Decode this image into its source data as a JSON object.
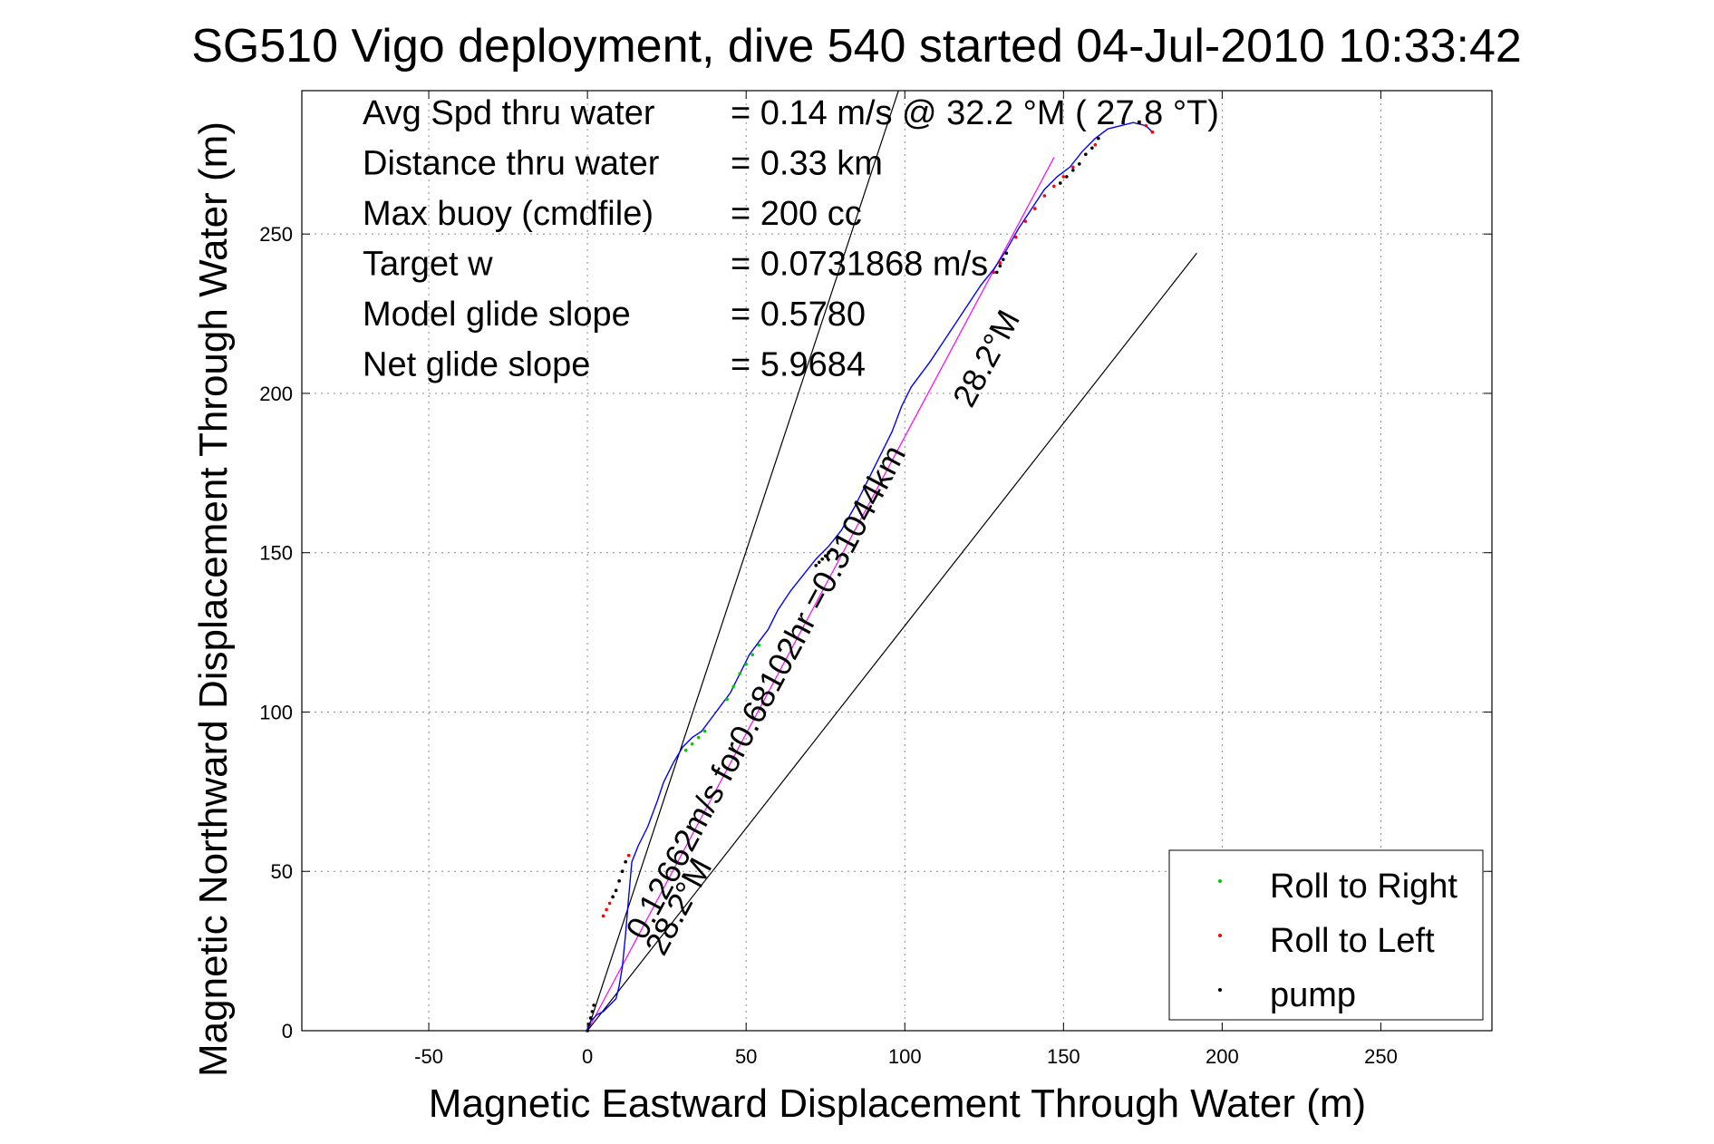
{
  "chart_data": {
    "type": "line",
    "title": "SG510 Vigo deployment, dive 540 started 04-Jul-2010 10:33:42",
    "xlabel": "Magnetic Eastward Displacement Through Water (m)",
    "ylabel": "Magnetic Northward Displacement Through Water (m)",
    "xlim": [
      -90,
      285
    ],
    "ylim": [
      0,
      295
    ],
    "xticks": [
      -50,
      0,
      50,
      100,
      150,
      200,
      250
    ],
    "yticks": [
      0,
      50,
      100,
      150,
      200,
      250
    ],
    "grid": true,
    "legend_position": "bottom-right",
    "colors": {
      "track": "#0000ff",
      "roll_right": "#00cc00",
      "roll_left": "#ff0000",
      "pump": "#000000",
      "heading_line": "#ff00ff",
      "bounds": "#000000"
    },
    "stats": [
      {
        "label": "Avg Spd thru water",
        "value": "=  0.14 m/s @  32.2 °M ( 27.8 °T)"
      },
      {
        "label": "Distance thru water",
        "value": "=  0.33 km"
      },
      {
        "label": "Max buoy (cmdfile)",
        "value": "= 200 cc"
      },
      {
        "label": "Target w",
        "value": "= 0.0731868 m/s"
      },
      {
        "label": "Model glide slope",
        "value": "= 0.5780"
      },
      {
        "label": "Net glide slope",
        "value": "= 5.9684"
      }
    ],
    "annotations": [
      {
        "text": "0.12662m/s for0.68102hr =0.31044km",
        "x": 18,
        "y": 28,
        "angle_deg": -61.8
      },
      {
        "text": "28.2°M",
        "x": 24,
        "y": 23,
        "angle_deg": -61.8
      },
      {
        "text": "28.2°M",
        "x": 121,
        "y": 195,
        "angle_deg": -61.8
      }
    ],
    "series": [
      {
        "name": "track",
        "x": [
          0,
          1,
          3,
          5,
          7,
          9,
          10,
          11,
          12,
          13,
          14,
          16,
          19,
          22,
          24,
          27,
          30,
          33,
          36,
          39,
          42,
          45,
          48,
          51,
          54,
          57,
          60,
          64,
          68,
          72,
          76,
          80,
          84,
          88,
          92,
          96,
          99,
          102,
          105,
          108,
          112,
          116,
          120,
          124,
          128,
          132,
          136,
          140,
          144,
          148,
          152,
          156,
          160,
          164,
          168,
          172,
          176,
          178
        ],
        "y": [
          0,
          3,
          5,
          6,
          8,
          10,
          14,
          20,
          30,
          42,
          53,
          58,
          64,
          72,
          78,
          84,
          89,
          92,
          94,
          98,
          102,
          106,
          112,
          118,
          122,
          126,
          132,
          138,
          143,
          148,
          152,
          157,
          164,
          172,
          180,
          188,
          196,
          202,
          206,
          210,
          216,
          222,
          228,
          234,
          239,
          245,
          252,
          258,
          264,
          268,
          271,
          276,
          280,
          283,
          284,
          285,
          284,
          282
        ]
      },
      {
        "name": "Roll to Right",
        "x": [
          31,
          33,
          35,
          37,
          44,
          46,
          48,
          50,
          52,
          54
        ],
        "y": [
          88,
          90,
          92,
          94,
          104,
          108,
          112,
          115,
          118,
          121
        ]
      },
      {
        "name": "Roll to Left",
        "x": [
          5,
          6,
          7,
          8,
          9,
          10,
          11,
          12,
          13,
          128,
          130,
          132,
          135,
          138,
          141,
          144,
          147,
          150,
          153,
          157,
          160,
          176,
          178
        ],
        "y": [
          36,
          38,
          40,
          42,
          44,
          47,
          50,
          53,
          55,
          238,
          241,
          244,
          249,
          254,
          258,
          262,
          265,
          268,
          271,
          275,
          278,
          284,
          282
        ]
      },
      {
        "name": "pump",
        "x": [
          0,
          0.5,
          1,
          1.5,
          2,
          8,
          9,
          10,
          11,
          12,
          72,
          73,
          74,
          75,
          76,
          77,
          129,
          130,
          131,
          132,
          149,
          151,
          153,
          155,
          157,
          159,
          161
        ],
        "y": [
          0,
          2,
          4,
          6,
          8,
          42,
          44,
          47,
          50,
          53,
          146,
          147,
          148,
          149,
          150,
          151,
          238,
          240,
          242,
          244,
          266,
          268,
          270,
          272,
          275,
          277,
          280
        ]
      }
    ],
    "lines": [
      {
        "name": "heading",
        "x": [
          0,
          147
        ],
        "y": [
          0,
          274
        ]
      },
      {
        "name": "bound-upper",
        "x": [
          0,
          98
        ],
        "y": [
          0,
          295
        ]
      },
      {
        "name": "bound-lower",
        "x": [
          0,
          192
        ],
        "y": [
          0,
          244
        ]
      }
    ],
    "legend": [
      "Roll to Right",
      "Roll to Left",
      "pump"
    ]
  }
}
